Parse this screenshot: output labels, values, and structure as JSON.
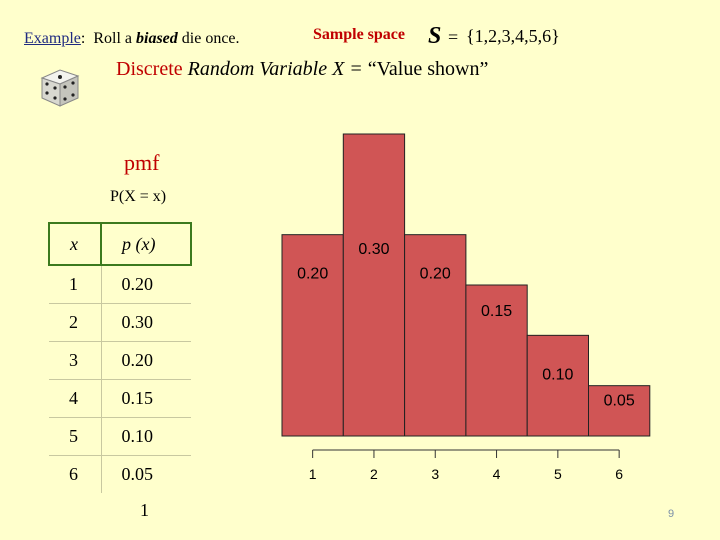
{
  "header": {
    "example_label": "Example",
    "example_colon": ":",
    "example_text_1": "Roll a",
    "example_emph": "biased",
    "example_text_2": "die once.",
    "sample_space_label": "Sample space",
    "s_symbol": "S",
    "s_equals": "=",
    "s_set": "{1,2,3,4,5,6}"
  },
  "random_variable": {
    "discrete": "Discrete",
    "rest": "Random Variable  X =",
    "quote": "“Value shown”"
  },
  "pmf": {
    "label": "pmf",
    "formula": "P(X = x)"
  },
  "table": {
    "headers": [
      "x",
      "p (x)"
    ],
    "rows": [
      [
        "1",
        "0.20"
      ],
      [
        "2",
        "0.30"
      ],
      [
        "3",
        "0.20"
      ],
      [
        "4",
        "0.15"
      ],
      [
        "5",
        "0.10"
      ],
      [
        "6",
        "0.05"
      ]
    ],
    "sum": "1"
  },
  "page_number": "9",
  "colors": {
    "background": "#ffffcc",
    "bar_fill": "#d05555",
    "accent_red": "#c00000",
    "table_header_border": "#3c7a1e"
  },
  "chart_data": {
    "type": "bar",
    "categories": [
      "1",
      "2",
      "3",
      "4",
      "5",
      "6"
    ],
    "values": [
      0.2,
      0.3,
      0.2,
      0.15,
      0.1,
      0.05
    ],
    "value_labels": [
      "0.20",
      "0.30",
      "0.20",
      "0.15",
      "0.10",
      "0.05"
    ],
    "title": "",
    "xlabel": "",
    "ylabel": "",
    "ylim": [
      0,
      0.3
    ],
    "grid": false
  }
}
